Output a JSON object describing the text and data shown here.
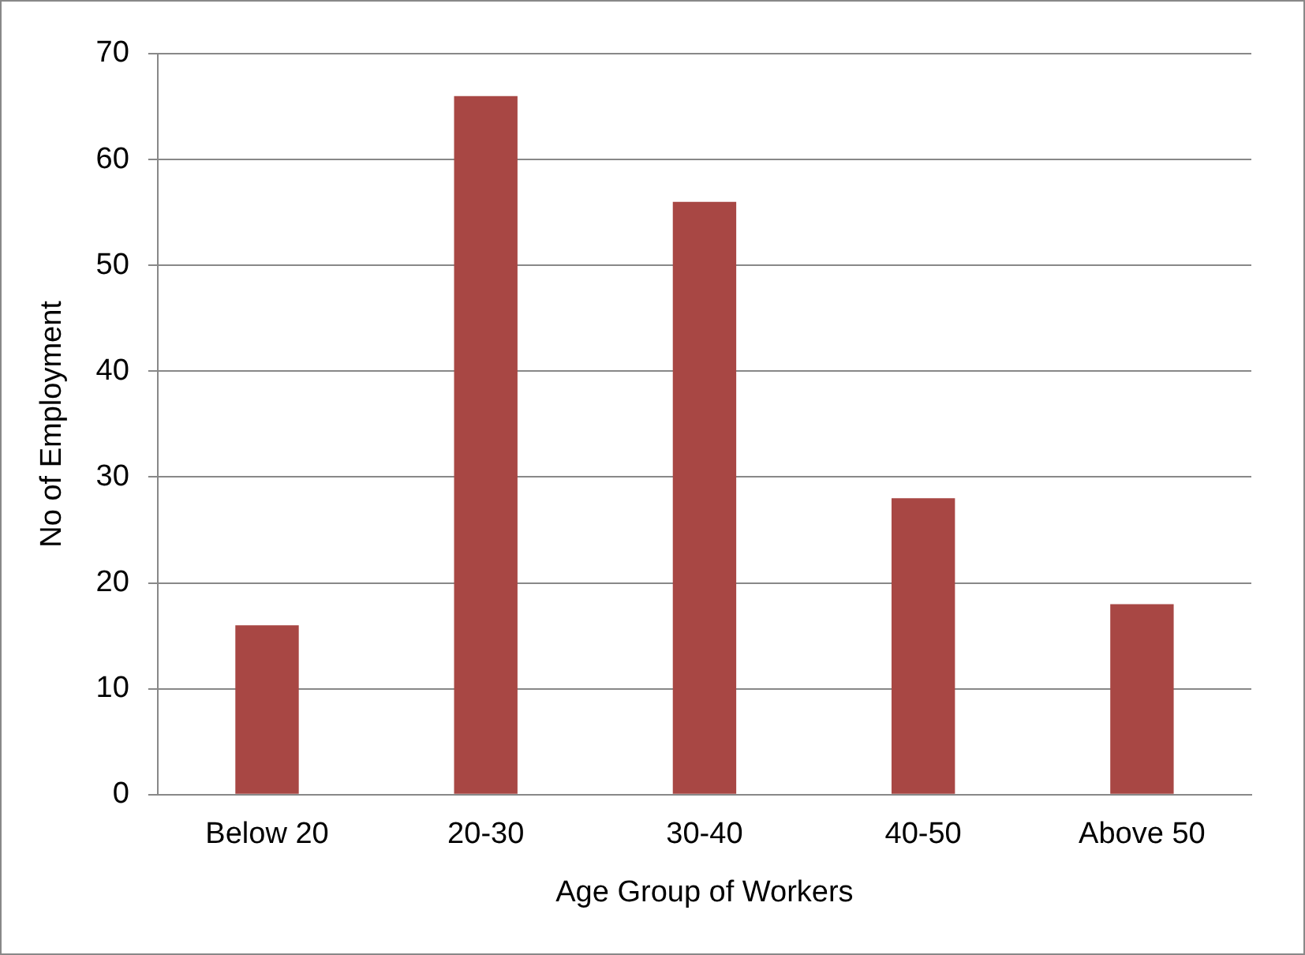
{
  "chart_data": {
    "type": "bar",
    "xlabel": "Age Group of Workers",
    "ylabel": "No of Employment",
    "categories": [
      "Below 20",
      "20-30",
      "30-40",
      "40-50",
      "Above 50"
    ],
    "values": [
      16,
      66,
      56,
      28,
      18
    ],
    "color": "#a84744",
    "ylim": [
      0,
      70
    ],
    "yticks": [
      0,
      10,
      20,
      30,
      40,
      50,
      60,
      70
    ],
    "grid": "y",
    "legend": false
  }
}
